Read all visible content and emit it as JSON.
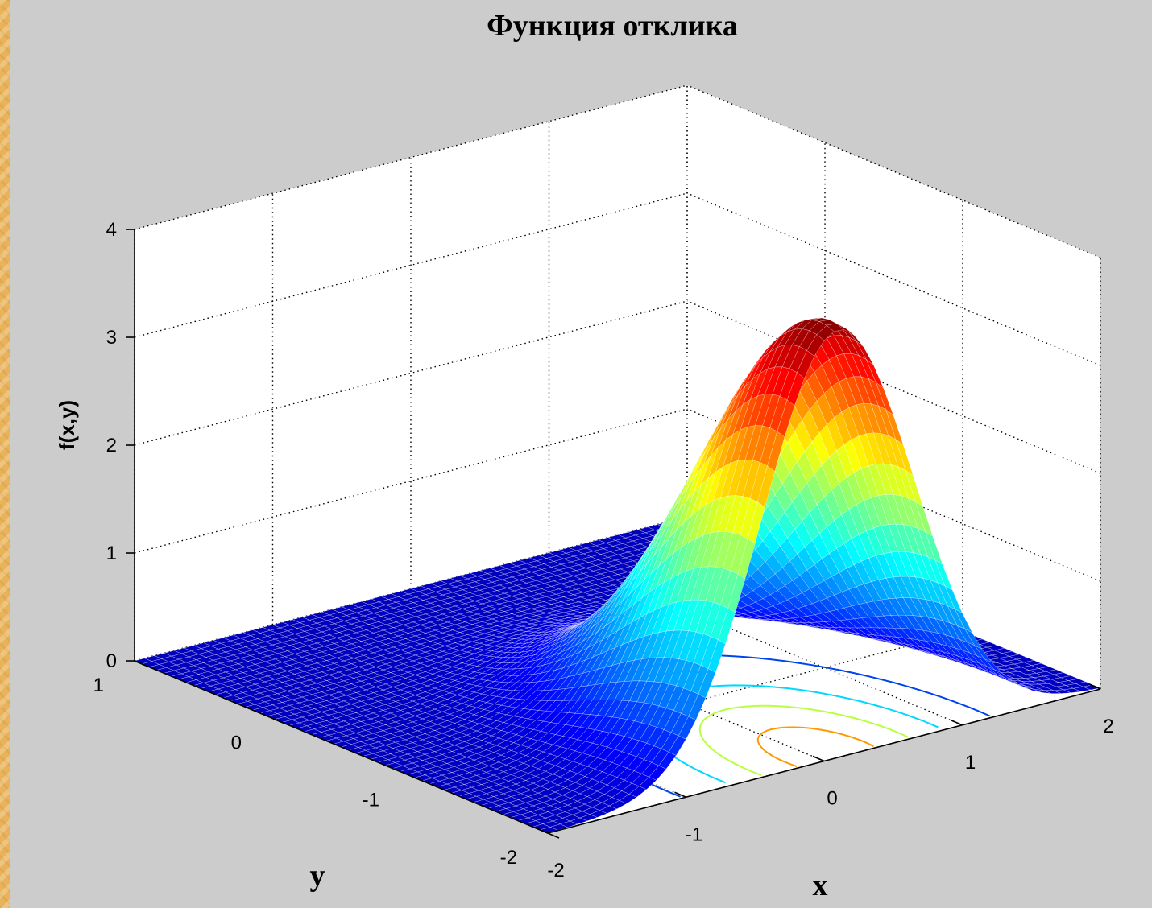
{
  "chart_data": {
    "type": "surface",
    "title": "Функция отклика",
    "xlabel": "x",
    "ylabel": "y",
    "zlabel": "f(x,y)",
    "xlim": [
      -2,
      2
    ],
    "ylim": [
      -2,
      1
    ],
    "zlim": [
      0,
      4
    ],
    "x_ticks": [
      "-2",
      "-1",
      "0",
      "1",
      "2"
    ],
    "y_ticks": [
      "-2",
      "-1",
      "0",
      "1"
    ],
    "z_ticks": [
      "0",
      "1",
      "2",
      "3",
      "4"
    ],
    "grid": true,
    "colormap": "jet",
    "surface": {
      "function": "gaussian",
      "peak": 4.0,
      "peak_x": 0.1,
      "peak_y": -1.9,
      "sigma_x": 0.55,
      "sigma_y": 0.75
    },
    "contour_levels": [
      0.5,
      1.5,
      2.5,
      3.5
    ],
    "colors": {
      "axes_background": "#ffffff",
      "figure_background": "#cccccc"
    }
  }
}
